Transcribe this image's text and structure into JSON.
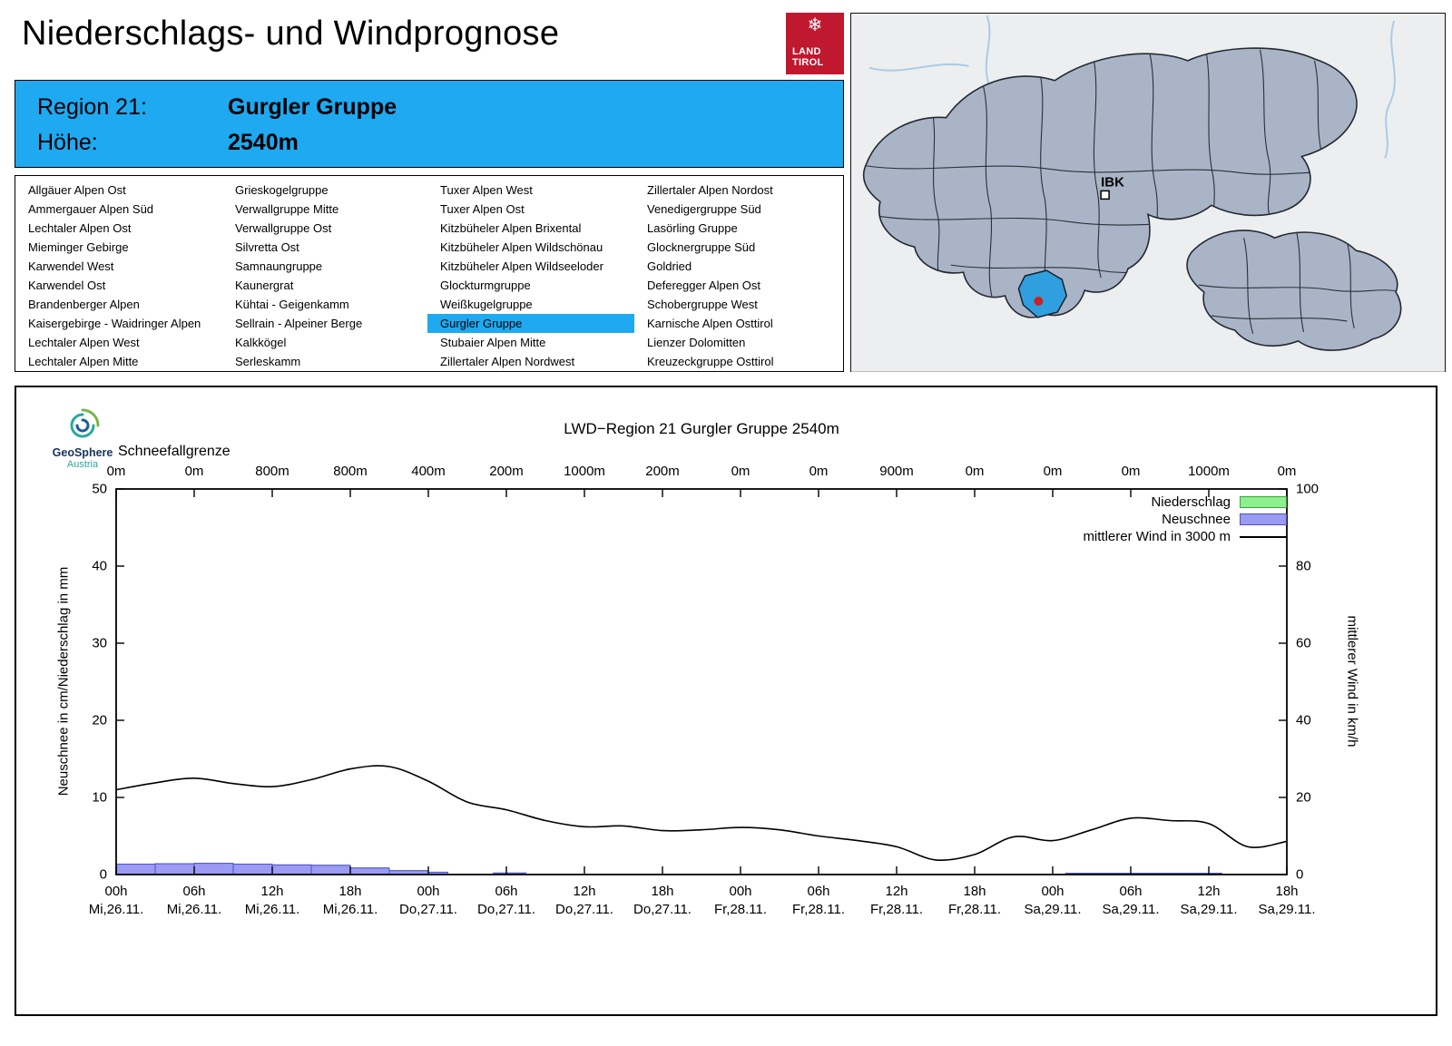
{
  "header": {
    "title": "Niederschlags- und Windprognose",
    "logo": {
      "line1": "LAND",
      "line2": "TIROL"
    }
  },
  "region_header": {
    "region_label": "Region 21:",
    "region_name": "Gurgler Gruppe",
    "altitude_label": "Höhe:",
    "altitude_value": "2540m"
  },
  "region_list": {
    "selected": "Gurgler Gruppe",
    "columns": [
      [
        "Allgäuer Alpen Ost",
        "Ammergauer Alpen Süd",
        "Lechtaler Alpen Ost",
        "Mieminger Gebirge",
        "Karwendel West",
        "Karwendel Ost",
        "Brandenberger Alpen",
        "Kaisergebirge - Waidringer Alpen",
        "Lechtaler Alpen West",
        "Lechtaler Alpen Mitte"
      ],
      [
        "Grieskogelgruppe",
        "Verwallgruppe Mitte",
        "Verwallgruppe Ost",
        "Silvretta Ost",
        "Samnaungruppe",
        "Kaunergrat",
        "Kühtai - Geigenkamm",
        "Sellrain - Alpeiner Berge",
        "Kalkkögel",
        "Serleskamm"
      ],
      [
        "Tuxer Alpen West",
        "Tuxer Alpen Ost",
        "Kitzbüheler Alpen Brixental",
        "Kitzbüheler Alpen Wildschönau",
        "Kitzbüheler Alpen Wildseeloder",
        "Glockturmgruppe",
        "Weißkugelgruppe",
        "Gurgler Gruppe",
        "Stubaier Alpen Mitte",
        "Zillertaler Alpen Nordwest"
      ],
      [
        "Zillertaler Alpen Nordost",
        "Venedigergruppe Süd",
        "Lasörling Gruppe",
        "Glocknergruppe Süd",
        "Goldried",
        "Deferegger Alpen Ost",
        "Schobergruppe West",
        "Karnische Alpen Osttirol",
        "Lienzer Dolomitten",
        "Kreuzeckgruppe Osttirol"
      ]
    ]
  },
  "map": {
    "city_label": "IBK"
  },
  "branding": {
    "name": "GeoSphere",
    "country": "Austria"
  },
  "colors": {
    "accent_blue": "#1ea9f1",
    "brand_red": "#c0182f",
    "niederschlag_green": "#8df08d",
    "neuschnee_blue": "#9b9bf3",
    "wind_black": "#000000",
    "map_region_fill": "#a9b5c6",
    "map_selected_fill": "#2f9fe0",
    "station_dot_red": "#cc2222"
  },
  "chart_data": {
    "type": "bar+line",
    "title": "LWD−Region 21 Gurgler Gruppe 2540m",
    "snowline": {
      "label": "Schneefallgrenze",
      "values": [
        "0m",
        "0m",
        "800m",
        "800m",
        "400m",
        "200m",
        "1000m",
        "200m",
        "0m",
        "0m",
        "900m",
        "0m",
        "0m",
        "0m",
        "1000m",
        "0m"
      ]
    },
    "ylabel_left": "Neuschnee in cm/Niederschlag in mm",
    "ylabel_right": "mittlerer Wind in km/h",
    "ylim_left": [
      0,
      50
    ],
    "ylim_right": [
      0,
      100
    ],
    "left_ticks": [
      0,
      10,
      20,
      30,
      40,
      50
    ],
    "right_ticks": [
      0,
      20,
      40,
      60,
      80,
      100
    ],
    "hours_span": 90,
    "x_ticks": [
      {
        "hour": 0,
        "time": "00h",
        "date": "Mi,26.11."
      },
      {
        "hour": 6,
        "time": "06h",
        "date": "Mi,26.11."
      },
      {
        "hour": 12,
        "time": "12h",
        "date": "Mi,26.11."
      },
      {
        "hour": 18,
        "time": "18h",
        "date": "Mi,26.11."
      },
      {
        "hour": 24,
        "time": "00h",
        "date": "Do,27.11."
      },
      {
        "hour": 30,
        "time": "06h",
        "date": "Do,27.11."
      },
      {
        "hour": 36,
        "time": "12h",
        "date": "Do,27.11."
      },
      {
        "hour": 42,
        "time": "18h",
        "date": "Do,27.11."
      },
      {
        "hour": 48,
        "time": "00h",
        "date": "Fr,28.11."
      },
      {
        "hour": 54,
        "time": "06h",
        "date": "Fr,28.11."
      },
      {
        "hour": 60,
        "time": "12h",
        "date": "Fr,28.11."
      },
      {
        "hour": 66,
        "time": "18h",
        "date": "Fr,28.11."
      },
      {
        "hour": 72,
        "time": "00h",
        "date": "Sa,29.11."
      },
      {
        "hour": 78,
        "time": "06h",
        "date": "Sa,29.11."
      },
      {
        "hour": 84,
        "time": "12h",
        "date": "Sa,29.11."
      },
      {
        "hour": 90,
        "time": "18h",
        "date": "Sa,29.11."
      }
    ],
    "legend": [
      {
        "label": "Niederschlag",
        "swatch": "box",
        "color": "#8df08d",
        "border": "#3aa33a"
      },
      {
        "label": "Neuschnee",
        "swatch": "box",
        "color": "#9b9bf3",
        "border": "#5050c8"
      },
      {
        "label": "mittlerer Wind in 3000 m",
        "swatch": "line",
        "color": "#000000"
      }
    ],
    "niederschlag_mm": [
      {
        "from_h": 0,
        "to_h": 3,
        "value": 1.35
      },
      {
        "from_h": 3,
        "to_h": 6,
        "value": 1.4
      },
      {
        "from_h": 6,
        "to_h": 9,
        "value": 1.45
      },
      {
        "from_h": 9,
        "to_h": 12,
        "value": 1.35
      },
      {
        "from_h": 12,
        "to_h": 15,
        "value": 1.25
      },
      {
        "from_h": 15,
        "to_h": 18,
        "value": 1.2
      },
      {
        "from_h": 18,
        "to_h": 21,
        "value": 0.85
      },
      {
        "from_h": 21,
        "to_h": 24,
        "value": 0.5
      },
      {
        "from_h": 24,
        "to_h": 25.5,
        "value": 0.3
      },
      {
        "from_h": 29,
        "to_h": 31.5,
        "value": 0.2
      },
      {
        "from_h": 73,
        "to_h": 85,
        "value": 0.15
      }
    ],
    "neuschnee_cm": [
      {
        "from_h": 0,
        "to_h": 3,
        "value": 1.35
      },
      {
        "from_h": 3,
        "to_h": 6,
        "value": 1.4
      },
      {
        "from_h": 6,
        "to_h": 9,
        "value": 1.45
      },
      {
        "from_h": 9,
        "to_h": 12,
        "value": 1.35
      },
      {
        "from_h": 12,
        "to_h": 15,
        "value": 1.25
      },
      {
        "from_h": 15,
        "to_h": 18,
        "value": 1.2
      },
      {
        "from_h": 18,
        "to_h": 21,
        "value": 0.85
      },
      {
        "from_h": 21,
        "to_h": 24,
        "value": 0.5
      },
      {
        "from_h": 24,
        "to_h": 25.5,
        "value": 0.3
      },
      {
        "from_h": 29,
        "to_h": 31.5,
        "value": 0.2
      },
      {
        "from_h": 73,
        "to_h": 85,
        "value": 0.15
      }
    ],
    "wind_kmh": {
      "step_h": 3,
      "values": [
        22.0,
        23.8,
        25.0,
        23.6,
        22.8,
        24.6,
        27.4,
        28.0,
        24.2,
        18.8,
        16.8,
        14.0,
        12.4,
        12.6,
        11.4,
        11.6,
        12.2,
        11.6,
        10.0,
        8.8,
        7.2,
        3.8,
        5.2,
        9.8,
        8.8,
        11.6,
        14.6,
        14.0,
        13.2,
        7.2,
        8.6
      ]
    }
  }
}
